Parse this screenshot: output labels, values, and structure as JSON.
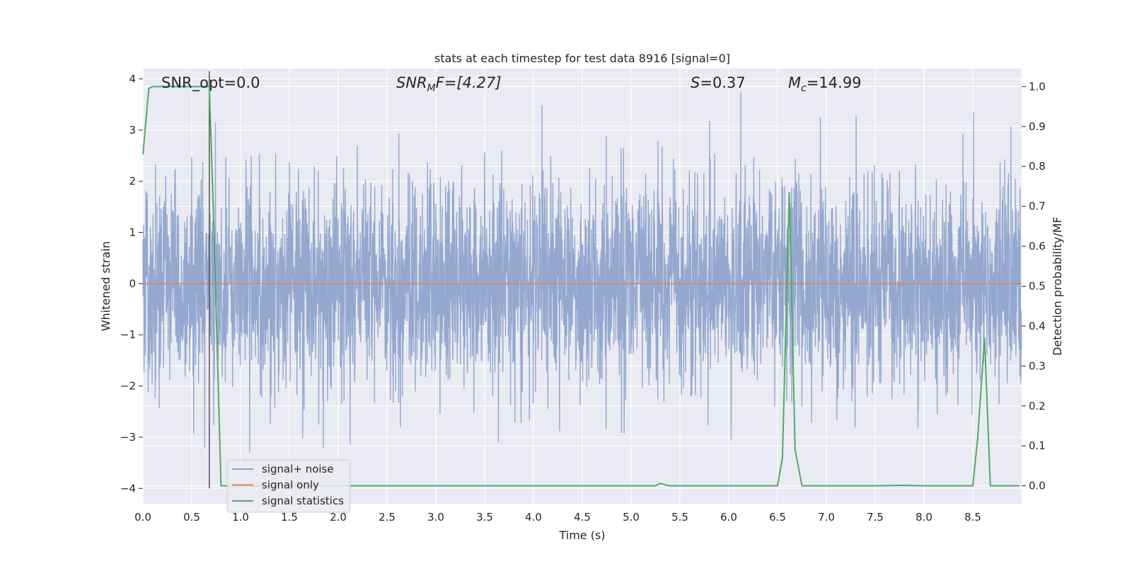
{
  "chart_data": {
    "type": "line",
    "title": "stats at each timestep for test data 8916 [signal=0]",
    "xlabel": "Time (s)",
    "ylabel_left": "Whitened strain",
    "ylabel_right": "Detection probability/MF",
    "xlim": [
      0.0,
      9.0
    ],
    "ylim_left": [
      -4.3,
      4.2
    ],
    "ylim_right": [
      -0.045,
      1.045
    ],
    "x_ticks": [
      "0.0",
      "0.5",
      "1.0",
      "1.5",
      "2.0",
      "2.5",
      "3.0",
      "3.5",
      "4.0",
      "4.5",
      "5.0",
      "5.5",
      "6.0",
      "6.5",
      "7.0",
      "7.5",
      "8.0",
      "8.5"
    ],
    "y_ticks_left": [
      "4",
      "3",
      "2",
      "1",
      "0",
      "−1",
      "−2",
      "−3",
      "−4"
    ],
    "y_ticks_right": [
      "1.0",
      "0.9",
      "0.8",
      "0.7",
      "0.6",
      "0.5",
      "0.4",
      "0.3",
      "0.2",
      "0.1",
      "0.0"
    ],
    "grid": true,
    "legend_placement": "lower-left",
    "colors": {
      "background": "#eaeaf2",
      "grid": "#ffffff",
      "signal_noise": "#8fa4cc",
      "signal_only": "#dd8452",
      "statistics": "#55a868",
      "marker": "#555555"
    },
    "series": [
      {
        "name": "signal+ noise",
        "axis": "left",
        "description_note": "",
        "noise_std": 1.0,
        "samples": 4000
      },
      {
        "name": "signal only",
        "axis": "left",
        "x": [
          0.0,
          9.0
        ],
        "y": [
          0.0,
          0.0
        ]
      },
      {
        "name": "signal statistics",
        "axis": "right",
        "x": [
          0.0,
          0.06,
          0.1,
          0.2,
          0.3,
          0.4,
          0.5,
          0.6,
          0.68,
          0.72,
          0.8,
          0.9,
          1.5,
          2.0,
          3.0,
          4.0,
          5.0,
          5.25,
          5.3,
          5.35,
          5.4,
          5.5,
          6.0,
          6.5,
          6.55,
          6.62,
          6.68,
          6.75,
          6.85,
          7.5,
          7.8,
          8.0,
          8.5,
          8.55,
          8.62,
          8.68,
          8.8,
          8.98
        ],
        "y": [
          0.83,
          0.995,
          1.0,
          1.0,
          1.0,
          1.0,
          1.0,
          1.0,
          1.0,
          0.7,
          0.0,
          0.0,
          0.0,
          0.0,
          0.0,
          0.0,
          0.0,
          0.0,
          0.006,
          0.002,
          0.0,
          0.0,
          0.0,
          0.0,
          0.07,
          0.735,
          0.09,
          0.0,
          0.0,
          0.0,
          0.001,
          0.0,
          0.0,
          0.12,
          0.37,
          0.0,
          0.0,
          0.0
        ]
      }
    ],
    "marker_line_x": 0.68,
    "annotations": {
      "snr_opt": "SNR_opt=0.0",
      "snr_mf_sym": "SNR",
      "snr_mf_sub": "M",
      "snr_mf_rest": "F=[4.27]",
      "s_sym": "S",
      "s_val": "=0.37",
      "mc_sym": "M",
      "mc_sub": "c",
      "mc_val": "=14.99"
    }
  }
}
